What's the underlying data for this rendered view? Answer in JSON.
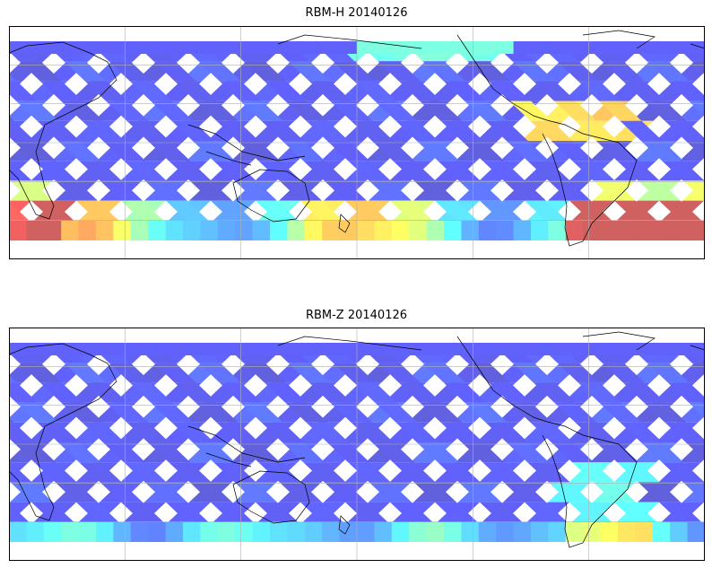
{
  "panels": [
    {
      "title": "RBM-H 20140126",
      "colormap": "jet",
      "variant": "h"
    },
    {
      "title": "RBM-Z 20140126",
      "colormap": "jet",
      "variant": "z"
    }
  ],
  "map": {
    "projection": "plate-carree",
    "central_longitude": 180,
    "grid": true,
    "coastlines": true,
    "swath_pattern": "crossing satellite ground tracks"
  }
}
